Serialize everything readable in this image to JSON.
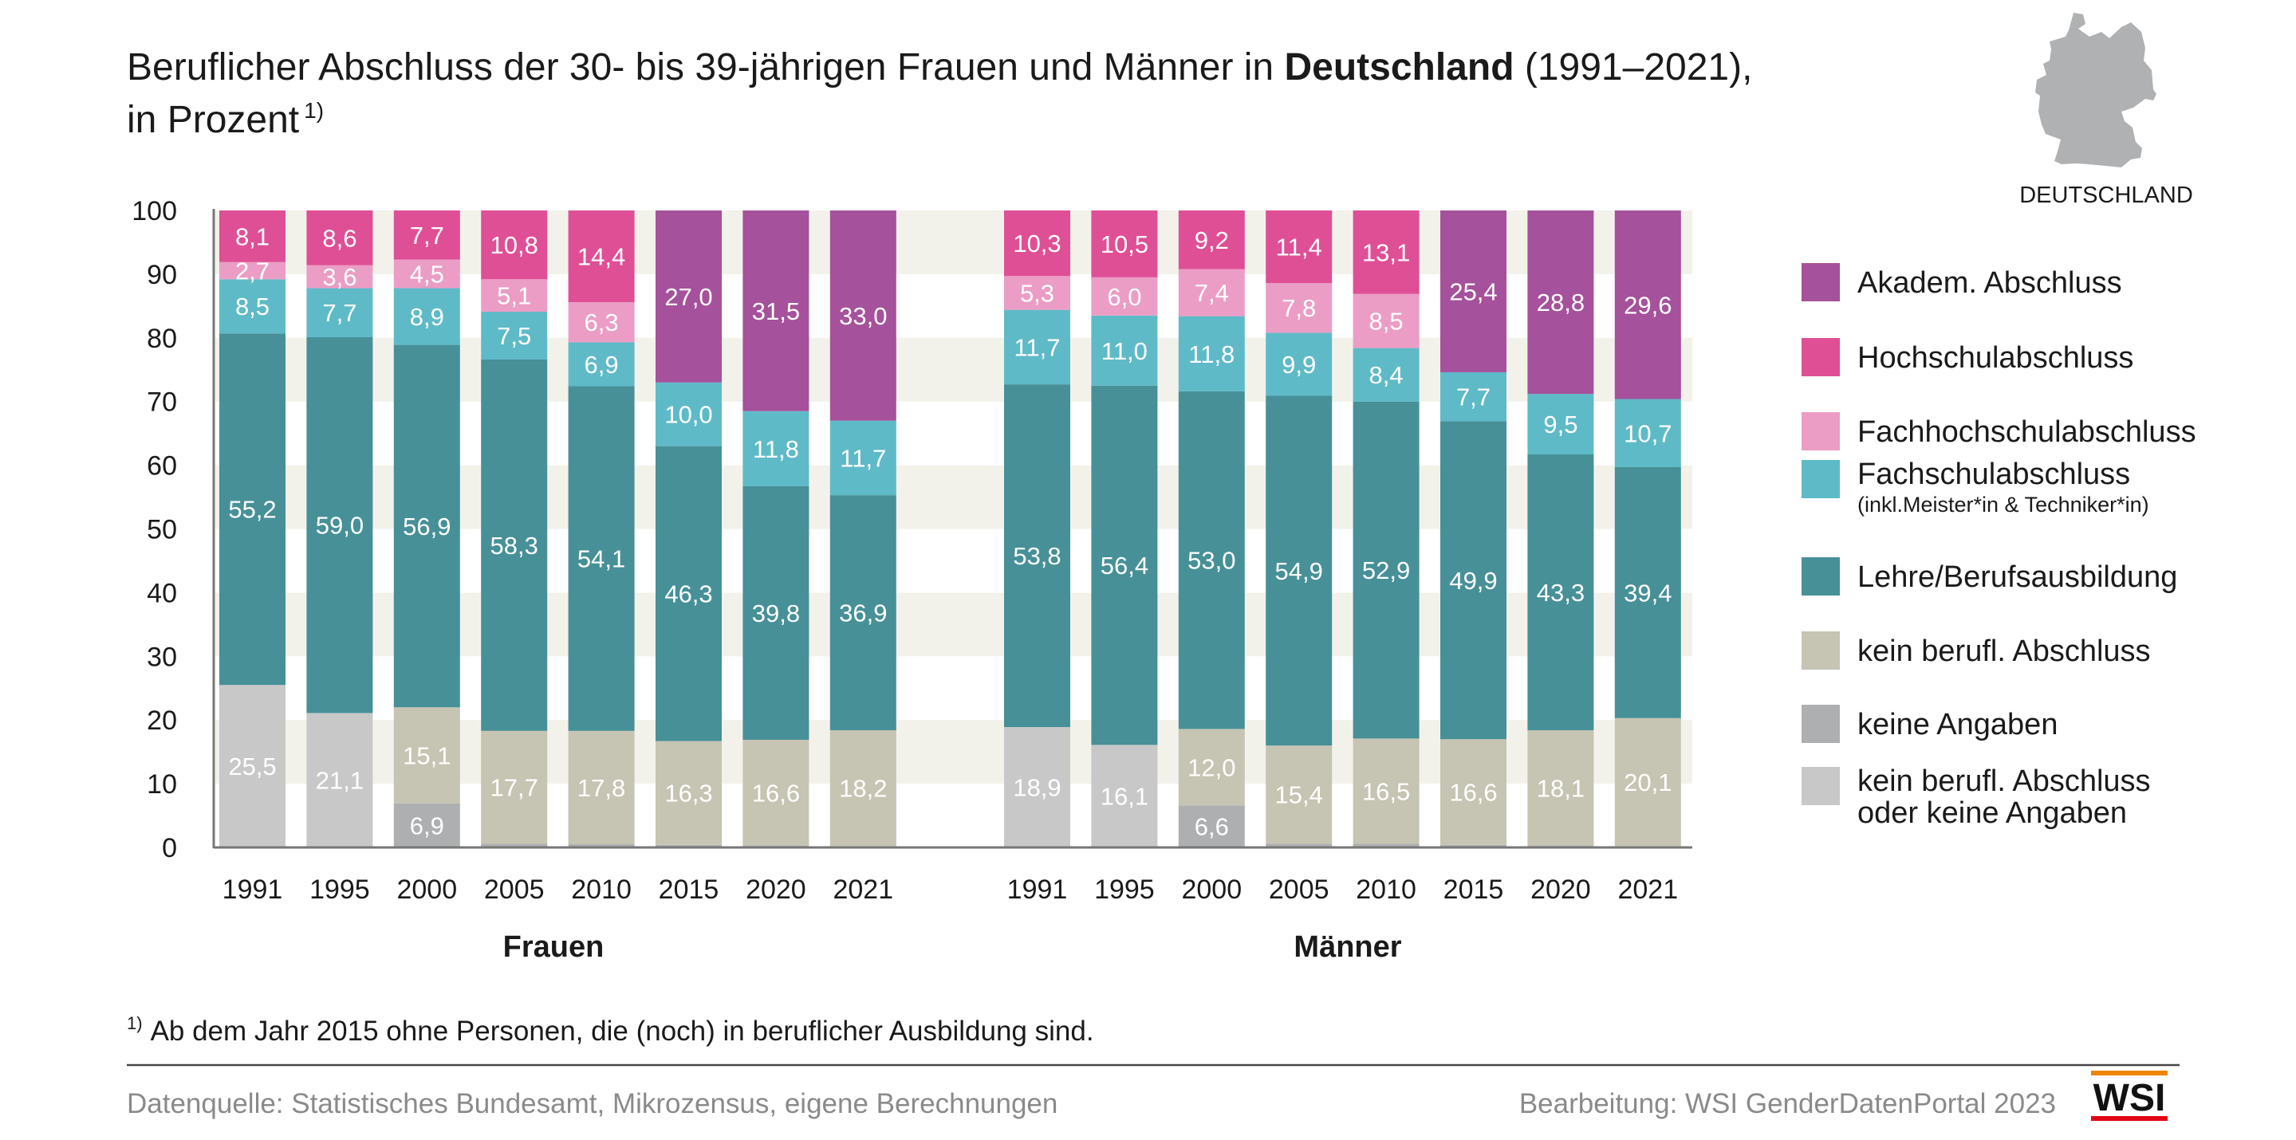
{
  "title": {
    "line1_pre": "Beruflicher Abschluss der 30- bis 39-jährigen Frauen und Männer in ",
    "line1_bold": "Deutschland",
    "line1_post": " (1991–2021),",
    "line2": "in Prozent",
    "footnote_mark": "1)"
  },
  "map_label": "DEUTSCHLAND",
  "footnote": {
    "mark": "1)",
    "text": "Ab dem Jahr 2015 ohne Personen, die (noch) in beruflicher Ausbildung sind."
  },
  "source": "Datenquelle: Statistisches Bundesamt, Mikrozensus, eigene Berechnungen",
  "credit": "Bearbeitung: WSI GenderDatenPortal 2023",
  "logo": "WSI",
  "chart_data": {
    "type": "bar",
    "stacked": true,
    "ylim": [
      0,
      100
    ],
    "yticks": [
      0,
      10,
      20,
      30,
      40,
      50,
      60,
      70,
      80,
      90,
      100
    ],
    "grid": "alternating bands",
    "legend_position": "right",
    "categories": [
      "1991",
      "1995",
      "2000",
      "2005",
      "2010",
      "2015",
      "2020",
      "2021"
    ],
    "groups": [
      "Frauen",
      "Männer"
    ],
    "series": [
      {
        "key": "kombi",
        "name": "kein berufl. Abschluss",
        "name2": "oder keine Angaben",
        "color": "#c8c8c8",
        "values": {
          "Frauen": [
            25.5,
            21.1,
            null,
            null,
            null,
            null,
            null,
            null
          ],
          "Männer": [
            18.9,
            16.1,
            null,
            null,
            null,
            null,
            null,
            null
          ]
        }
      },
      {
        "key": "keine",
        "name": "keine Angaben",
        "color": "#aeafb1",
        "values": {
          "Frauen": [
            null,
            null,
            6.9,
            0.6,
            0.5,
            0.4,
            0.3,
            0.2
          ],
          "Männer": [
            null,
            null,
            6.6,
            0.6,
            0.6,
            0.4,
            0.3,
            0.2
          ]
        }
      },
      {
        "key": "kein",
        "name": "kein berufl. Abschluss",
        "color": "#c6c4b2",
        "values": {
          "Frauen": [
            null,
            null,
            15.1,
            17.7,
            17.8,
            16.3,
            16.6,
            18.2
          ],
          "Männer": [
            null,
            null,
            12.0,
            15.4,
            16.5,
            16.6,
            18.1,
            20.1
          ]
        }
      },
      {
        "key": "lehre",
        "name": "Lehre/Berufsausbildung",
        "color": "#479098",
        "values": {
          "Frauen": [
            55.2,
            59.0,
            56.9,
            58.3,
            54.1,
            46.3,
            39.8,
            36.9
          ],
          "Männer": [
            53.8,
            56.4,
            53.0,
            54.9,
            52.9,
            49.9,
            43.3,
            39.4
          ]
        }
      },
      {
        "key": "fachschul",
        "name": "Fachschulabschluss",
        "name2": "(inkl.Meister*in & Techniker*in)",
        "color": "#5fbac8",
        "values": {
          "Frauen": [
            8.5,
            7.7,
            8.9,
            7.5,
            6.9,
            10.0,
            11.8,
            11.7
          ],
          "Männer": [
            11.7,
            11.0,
            11.8,
            9.9,
            8.4,
            7.7,
            9.5,
            10.7
          ]
        }
      },
      {
        "key": "fh",
        "name": "Fachhochschulabschluss",
        "color": "#eb9dc5",
        "values": {
          "Frauen": [
            2.7,
            3.6,
            4.5,
            5.1,
            6.3,
            null,
            null,
            null
          ],
          "Männer": [
            5.3,
            6.0,
            7.4,
            7.8,
            8.5,
            null,
            null,
            null
          ]
        }
      },
      {
        "key": "hs",
        "name": "Hochschulabschluss",
        "color": "#df4f96",
        "values": {
          "Frauen": [
            8.1,
            8.6,
            7.7,
            10.8,
            14.4,
            null,
            null,
            null
          ],
          "Männer": [
            10.3,
            10.5,
            9.2,
            11.4,
            13.1,
            null,
            null,
            null
          ]
        }
      },
      {
        "key": "akad",
        "name": "Akadem. Abschluss",
        "color": "#a5519b",
        "values": {
          "Frauen": [
            null,
            null,
            null,
            null,
            null,
            27.0,
            31.5,
            33.0
          ],
          "Männer": [
            null,
            null,
            null,
            null,
            null,
            25.4,
            28.8,
            29.6
          ]
        }
      }
    ],
    "legend_order": [
      "akad",
      "hs",
      "fh",
      "fachschul",
      "lehre",
      "kein",
      "keine",
      "kombi"
    ]
  }
}
